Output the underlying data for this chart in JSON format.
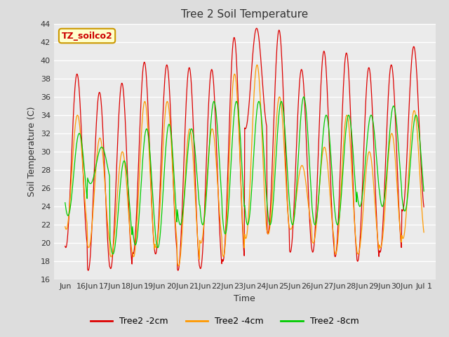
{
  "title": "Tree 2 Soil Temperature",
  "ylabel": "Soil Temperature (C)",
  "xlabel": "Time",
  "ylim": [
    16,
    44
  ],
  "yticks": [
    16,
    18,
    20,
    22,
    24,
    26,
    28,
    30,
    32,
    34,
    36,
    38,
    40,
    42,
    44
  ],
  "legend_label": "TZ_soilco2",
  "series_labels": [
    "Tree2 -2cm",
    "Tree2 -4cm",
    "Tree2 -8cm"
  ],
  "series_colors": [
    "#dd0000",
    "#ff9900",
    "#00cc00"
  ],
  "background_color": "#dddddd",
  "plot_bg_color": "#ebebeb",
  "xtick_labels": [
    "Jun",
    "16Jun",
    "17Jun",
    "18Jun",
    "19Jun",
    "20Jun",
    "21Jun",
    "22Jun",
    "23Jun",
    "24Jun",
    "25Jun",
    "26Jun",
    "27Jun",
    "28Jun",
    "29Jun",
    "30Jun",
    "Jul 1"
  ],
  "xtick_positions": [
    0,
    1,
    2,
    3,
    4,
    5,
    6,
    7,
    8,
    9,
    10,
    11,
    12,
    13,
    14,
    15,
    16
  ],
  "num_days": 16,
  "pts_per_day": 48,
  "day_peaks_2cm": [
    38.5,
    36.5,
    37.5,
    39.8,
    39.5,
    39.2,
    39.0,
    42.5,
    43.5,
    43.3,
    39.0,
    41.0,
    40.8,
    39.2,
    39.5,
    41.5
  ],
  "day_troughs_2cm": [
    19.5,
    17.0,
    17.2,
    18.8,
    18.8,
    17.0,
    17.2,
    18.0,
    32.5,
    21.0,
    19.0,
    19.0,
    18.5,
    18.0,
    19.0,
    23.5
  ],
  "day_peaks_4cm": [
    34.0,
    31.5,
    30.0,
    35.5,
    35.5,
    32.5,
    32.5,
    38.5,
    39.5,
    36.0,
    28.5,
    30.5,
    34.0,
    30.0,
    32.0,
    34.5
  ],
  "day_troughs_4cm": [
    21.5,
    19.5,
    18.5,
    18.5,
    19.5,
    17.5,
    20.0,
    18.5,
    20.5,
    21.0,
    21.5,
    20.0,
    18.8,
    18.8,
    19.5,
    20.5
  ],
  "day_peaks_8cm": [
    32.0,
    30.5,
    29.0,
    32.5,
    33.0,
    32.5,
    35.5,
    35.5,
    35.5,
    35.5,
    36.0,
    34.0,
    34.0,
    34.0,
    35.0,
    34.0
  ],
  "day_troughs_8cm": [
    23.0,
    26.5,
    18.8,
    19.8,
    19.5,
    22.0,
    22.0,
    21.0,
    22.0,
    22.0,
    22.0,
    22.0,
    22.0,
    24.0,
    24.0,
    23.5
  ],
  "phase_2cm": 0.28,
  "phase_4cm": 0.3,
  "phase_8cm": 0.38
}
